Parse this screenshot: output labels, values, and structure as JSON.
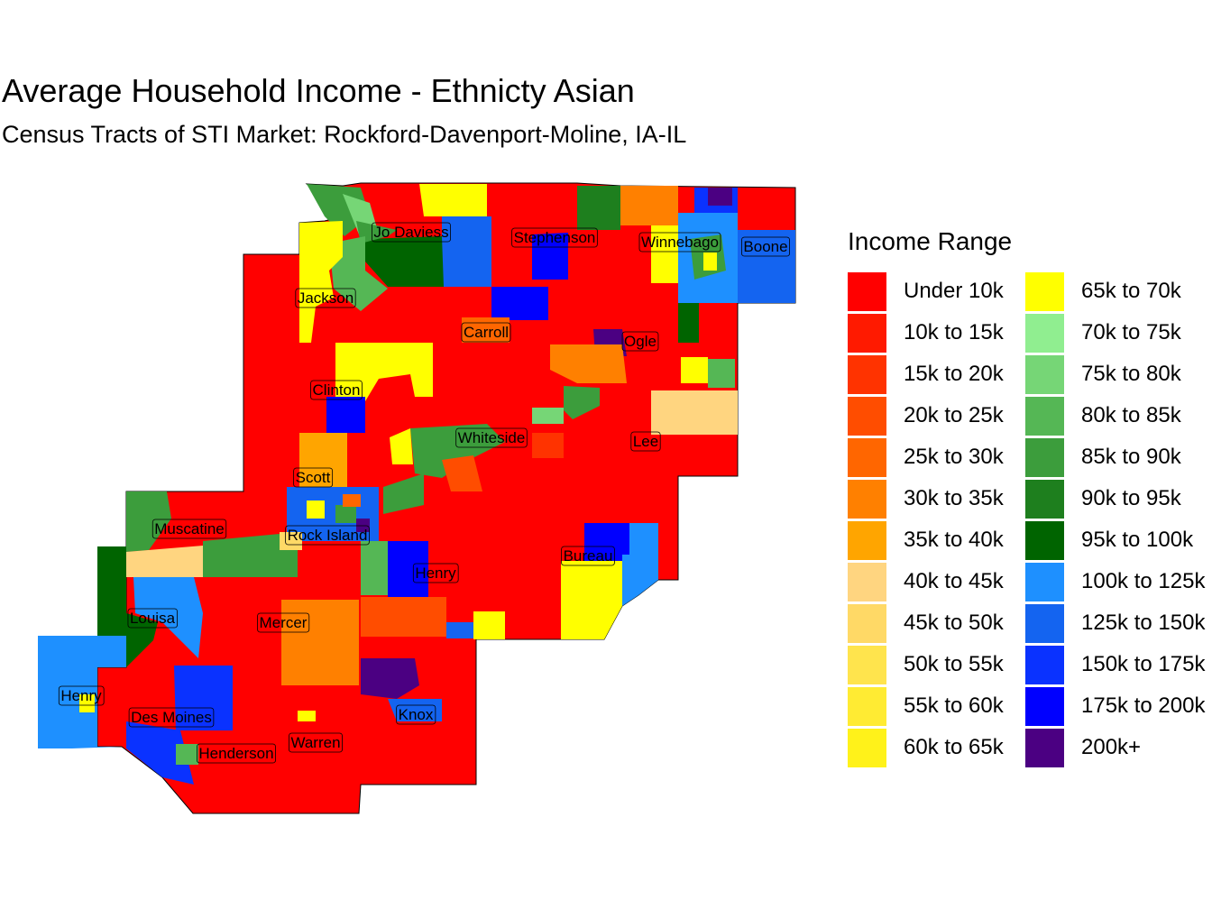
{
  "title": "Average Household Income - Ethnicty Asian",
  "subtitle": "Census Tracts of STI Market: Rockford-Davenport-Moline, IA-IL",
  "legend": {
    "title": "Income Range",
    "items": [
      {
        "label": "Under 10k",
        "color": "#FF0000"
      },
      {
        "label": "10k to 15k",
        "color": "#FF1A00"
      },
      {
        "label": "15k to 20k",
        "color": "#FF3300"
      },
      {
        "label": "20k to 25k",
        "color": "#FF4D00"
      },
      {
        "label": "25k to 30k",
        "color": "#FF6600"
      },
      {
        "label": "30k to 35k",
        "color": "#FF8000"
      },
      {
        "label": "35k to 40k",
        "color": "#FFA500"
      },
      {
        "label": "40k to 45k",
        "color": "#FFD580"
      },
      {
        "label": "45k to 50k",
        "color": "#FFD966"
      },
      {
        "label": "50k to 55k",
        "color": "#FFE44D"
      },
      {
        "label": "55k to 60k",
        "color": "#FFEB33"
      },
      {
        "label": "60k to 65k",
        "color": "#FFF21A"
      },
      {
        "label": "65k to 70k",
        "color": "#FFFF00"
      },
      {
        "label": "70k to 75k",
        "color": "#90EE90"
      },
      {
        "label": "75k to 80k",
        "color": "#76D676"
      },
      {
        "label": "80k to 85k",
        "color": "#55B755"
      },
      {
        "label": "85k to 90k",
        "color": "#3C9D3C"
      },
      {
        "label": "90k to 95k",
        "color": "#1E7F1E"
      },
      {
        "label": "95k to 100k",
        "color": "#006400"
      },
      {
        "label": "100k to 125k",
        "color": "#1E90FF"
      },
      {
        "label": "125k to 150k",
        "color": "#1464F0"
      },
      {
        "label": "150k to 175k",
        "color": "#0A32FF"
      },
      {
        "label": "175k to 200k",
        "color": "#0000FF"
      },
      {
        "label": "200k+",
        "color": "#4B0082"
      }
    ]
  },
  "counties": [
    "Jo Daviess",
    "Stephenson",
    "Winnebago",
    "Boone",
    "Jackson",
    "Carroll",
    "Ogle",
    "Clinton",
    "Whiteside",
    "Lee",
    "Scott",
    "Muscatine",
    "Rock Island",
    "Bureau",
    "Henry",
    "Louisa",
    "Mercer",
    "Henry",
    "Des Moines",
    "Knox",
    "Warren",
    "Henderson"
  ],
  "colors": {
    "base": "#FF0000",
    "border": "#000000"
  }
}
